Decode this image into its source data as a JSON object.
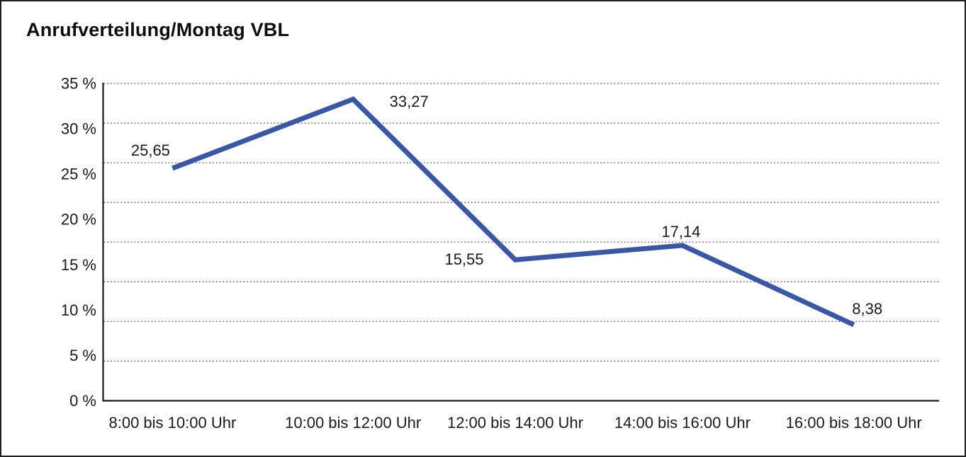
{
  "chart_data": {
    "type": "line",
    "title": "Anrufverteilung/Montag VBL",
    "categories": [
      "8:00 bis 10:00 Uhr",
      "10:00 bis 12:00 Uhr",
      "12:00 bis 14:00 Uhr",
      "14:00 bis 16:00 Uhr",
      "16:00 bis 18:00 Uhr"
    ],
    "values": [
      25.65,
      33.27,
      15.55,
      17.14,
      8.38
    ],
    "value_labels": [
      "25,65",
      "33,27",
      "15,55",
      "17,14",
      "8,38"
    ],
    "y_tick_labels": [
      "35 %",
      "30 %",
      "25 %",
      "20 %",
      "15 %",
      "10 %",
      "5 %",
      "0 %"
    ],
    "y_tick_values": [
      35,
      30,
      25,
      20,
      15,
      10,
      5,
      0
    ],
    "ylim": [
      0,
      35
    ],
    "xlabel": "",
    "ylabel": "",
    "legend": "none",
    "grid": "horizontal-dotted",
    "line_color": "#3A57A6",
    "grid_color": "#4d4d4d",
    "axis_color": "#1a1a1a",
    "text_color": "#1a1a1a"
  }
}
